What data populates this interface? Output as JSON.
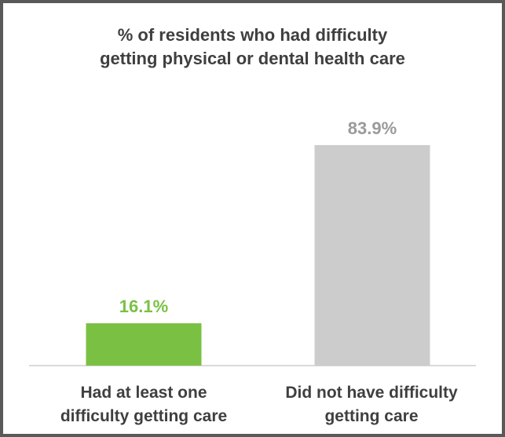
{
  "chart_data": {
    "type": "bar",
    "title_lines": [
      "% of residents who had difficulty",
      "getting physical or dental health care"
    ],
    "categories": [
      [
        "Had at least one",
        "difficulty getting care"
      ],
      [
        "Did not have difficulty",
        "getting care"
      ]
    ],
    "values": [
      16.1,
      83.9
    ],
    "value_labels": [
      "16.1%",
      "83.9%"
    ],
    "colors": [
      "#7ac143",
      "#cccccc"
    ],
    "label_colors": [
      "#7ac143",
      "#9a9a9a"
    ],
    "ylim": [
      0,
      100
    ],
    "grid": false,
    "legend": "none"
  }
}
